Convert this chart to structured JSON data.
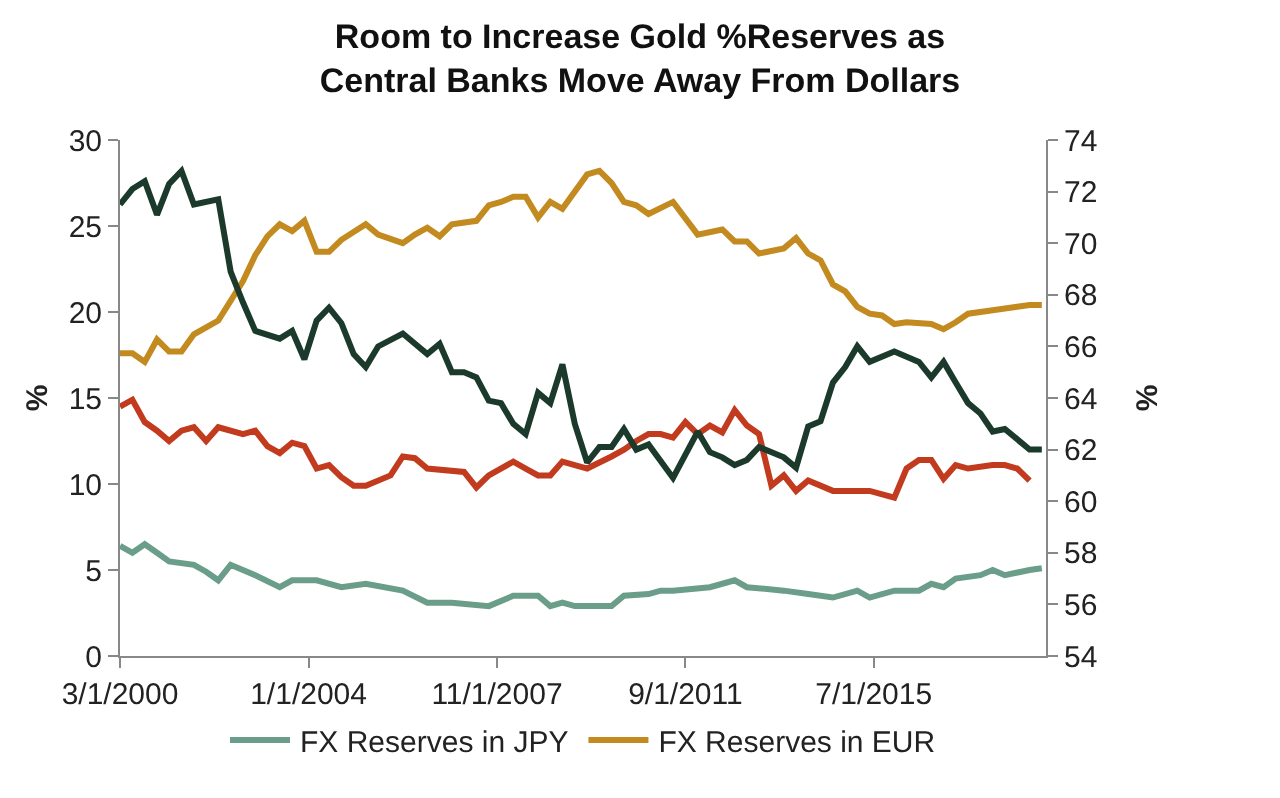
{
  "chart_data": {
    "type": "line",
    "title": "Room to Increase Gold %Reserves as\nCentral Banks Move Away From Dollars",
    "ylabel": "%",
    "y2label": "%",
    "xlim": [
      "2000-03-01",
      "2019-01-01"
    ],
    "xticks": [
      {
        "value": "2000-03-01",
        "label": "3/1/2000"
      },
      {
        "value": "2004-01-01",
        "label": "1/1/2004"
      },
      {
        "value": "2007-11-01",
        "label": "11/1/2007"
      },
      {
        "value": "2011-09-01",
        "label": "9/1/2011"
      },
      {
        "value": "2015-07-01",
        "label": "7/1/2015"
      }
    ],
    "ylim": [
      0,
      30
    ],
    "yticks": [
      0,
      5,
      10,
      15,
      20,
      25,
      30
    ],
    "y2lim": [
      54,
      74
    ],
    "y2ticks": [
      54,
      56,
      58,
      60,
      62,
      64,
      66,
      68,
      70,
      72,
      74
    ],
    "legend": "bottom",
    "series": [
      {
        "name": "FX Reserves in JPY",
        "color": "#6b9e8a",
        "x": [
          "2000-03",
          "2000-06",
          "2000-09",
          "2000-12",
          "2001-03",
          "2001-09",
          "2001-12",
          "2002-03",
          "2002-06",
          "2002-12",
          "2003-06",
          "2003-09",
          "2004-03",
          "2004-09",
          "2005-03",
          "2005-12",
          "2006-06",
          "2006-12",
          "2007-09",
          "2008-03",
          "2008-09",
          "2008-12",
          "2009-03",
          "2009-06",
          "2010-03",
          "2010-06",
          "2010-12",
          "2011-03",
          "2011-06",
          "2012-03",
          "2012-09",
          "2012-12",
          "2013-09",
          "2014-03",
          "2014-09",
          "2015-03",
          "2015-06",
          "2015-12",
          "2016-06",
          "2016-09",
          "2016-12",
          "2017-03",
          "2017-09",
          "2017-12",
          "2018-03",
          "2018-09",
          "2018-12"
        ],
        "values": [
          6.4,
          6.0,
          6.5,
          6.0,
          5.5,
          5.3,
          4.9,
          4.4,
          5.3,
          4.7,
          4.0,
          4.4,
          4.4,
          4.0,
          4.2,
          3.8,
          3.1,
          3.1,
          2.9,
          3.5,
          3.5,
          2.9,
          3.1,
          2.9,
          2.9,
          3.5,
          3.6,
          3.8,
          3.8,
          4.0,
          4.4,
          4.0,
          3.8,
          3.6,
          3.4,
          3.8,
          3.4,
          3.8,
          3.8,
          4.2,
          4.0,
          4.5,
          4.7,
          5.0,
          4.7,
          5.0,
          5.1
        ]
      },
      {
        "name": "FX Reserves in EUR",
        "color": "#c38a1f",
        "x": [
          "2000-03",
          "2000-06",
          "2000-09",
          "2000-12",
          "2001-03",
          "2001-06",
          "2001-09",
          "2002-03",
          "2002-09",
          "2002-12",
          "2003-03",
          "2003-06",
          "2003-09",
          "2003-12",
          "2004-03",
          "2004-06",
          "2004-09",
          "2005-03",
          "2005-06",
          "2005-12",
          "2006-03",
          "2006-06",
          "2006-09",
          "2006-12",
          "2007-06",
          "2007-09",
          "2007-12",
          "2008-03",
          "2008-06",
          "2008-09",
          "2008-12",
          "2009-03",
          "2009-09",
          "2009-12",
          "2010-03",
          "2010-06",
          "2010-09",
          "2010-12",
          "2011-06",
          "2011-12",
          "2012-06",
          "2012-09",
          "2012-12",
          "2013-03",
          "2013-09",
          "2013-12",
          "2014-03",
          "2014-06",
          "2014-09",
          "2014-12",
          "2015-03",
          "2015-06",
          "2015-09",
          "2015-12",
          "2016-03",
          "2016-09",
          "2016-12",
          "2017-03",
          "2017-06",
          "2017-12",
          "2018-06",
          "2018-09",
          "2018-12"
        ],
        "values": [
          17.6,
          17.6,
          17.1,
          18.4,
          17.7,
          17.7,
          18.7,
          19.5,
          21.8,
          23.3,
          24.4,
          25.1,
          24.7,
          25.3,
          23.5,
          23.5,
          24.2,
          25.1,
          24.5,
          24.0,
          24.5,
          24.9,
          24.4,
          25.1,
          25.3,
          26.2,
          26.4,
          26.7,
          26.7,
          25.5,
          26.4,
          26.0,
          28.0,
          28.2,
          27.5,
          26.4,
          26.2,
          25.7,
          26.4,
          24.5,
          24.8,
          24.1,
          24.1,
          23.4,
          23.7,
          24.3,
          23.4,
          23.0,
          21.6,
          21.2,
          20.3,
          19.9,
          19.8,
          19.3,
          19.4,
          19.3,
          19.0,
          19.4,
          19.9,
          20.1,
          20.3,
          20.4,
          20.4
        ]
      },
      {
        "color": "#c23b1f",
        "x": [
          "2000-03",
          "2000-06",
          "2000-09",
          "2000-12",
          "2001-03",
          "2001-06",
          "2001-09",
          "2001-12",
          "2002-03",
          "2002-09",
          "2002-12",
          "2003-03",
          "2003-06",
          "2003-09",
          "2003-12",
          "2004-03",
          "2004-06",
          "2004-09",
          "2004-12",
          "2005-03",
          "2005-09",
          "2005-12",
          "2006-03",
          "2006-06",
          "2007-03",
          "2007-06",
          "2007-09",
          "2008-03",
          "2008-06",
          "2008-09",
          "2008-12",
          "2009-03",
          "2009-06",
          "2009-09",
          "2010-03",
          "2010-06",
          "2010-09",
          "2010-12",
          "2011-03",
          "2011-06",
          "2011-09",
          "2011-12",
          "2012-03",
          "2012-06",
          "2012-09",
          "2012-12",
          "2013-03",
          "2013-06",
          "2013-09",
          "2013-12",
          "2014-03",
          "2014-09",
          "2015-06",
          "2015-12",
          "2016-03",
          "2016-06",
          "2016-09",
          "2016-12",
          "2017-03",
          "2017-06",
          "2017-12",
          "2018-03",
          "2018-06",
          "2018-09"
        ],
        "values": [
          14.5,
          14.9,
          13.6,
          13.1,
          12.5,
          13.1,
          13.3,
          12.5,
          13.3,
          12.9,
          13.1,
          12.2,
          11.8,
          12.4,
          12.2,
          10.9,
          11.1,
          10.4,
          9.9,
          9.9,
          10.5,
          11.6,
          11.5,
          10.9,
          10.7,
          9.8,
          10.5,
          11.3,
          10.9,
          10.5,
          10.5,
          11.3,
          11.1,
          10.9,
          11.6,
          12.0,
          12.5,
          12.9,
          12.9,
          12.7,
          13.6,
          12.9,
          13.4,
          13.0,
          14.3,
          13.4,
          12.9,
          9.9,
          10.5,
          9.6,
          10.2,
          9.6,
          9.6,
          9.2,
          10.9,
          11.4,
          11.4,
          10.3,
          11.1,
          10.9,
          11.1,
          11.1,
          10.9,
          10.2
        ]
      },
      {
        "color": "#1c3a2c",
        "axis": "y2",
        "x": [
          "2000-03",
          "2000-06",
          "2000-09",
          "2000-12",
          "2001-03",
          "2001-06",
          "2001-09",
          "2002-03",
          "2002-06",
          "2002-09",
          "2002-12",
          "2003-06",
          "2003-09",
          "2003-12",
          "2004-03",
          "2004-06",
          "2004-09",
          "2004-12",
          "2005-03",
          "2005-06",
          "2005-12",
          "2006-06",
          "2006-09",
          "2006-12",
          "2007-03",
          "2007-06",
          "2007-09",
          "2007-12",
          "2008-03",
          "2008-06",
          "2008-09",
          "2008-12",
          "2009-03",
          "2009-06",
          "2009-09",
          "2009-12",
          "2010-03",
          "2010-06",
          "2010-09",
          "2010-12",
          "2011-06",
          "2011-12",
          "2012-03",
          "2012-06",
          "2012-09",
          "2012-12",
          "2013-03",
          "2013-09",
          "2013-12",
          "2014-03",
          "2014-06",
          "2014-09",
          "2014-12",
          "2015-03",
          "2015-06",
          "2015-12",
          "2016-06",
          "2016-09",
          "2016-12",
          "2017-03",
          "2017-06",
          "2017-09",
          "2017-12",
          "2018-03",
          "2018-09",
          "2018-12"
        ],
        "values": [
          71.5,
          72.1,
          72.4,
          71.1,
          72.3,
          72.8,
          71.5,
          71.7,
          68.9,
          67.7,
          66.6,
          66.3,
          66.6,
          65.5,
          67.0,
          67.5,
          66.9,
          65.7,
          65.2,
          66.0,
          66.5,
          65.7,
          66.1,
          65.0,
          65.0,
          64.8,
          63.9,
          63.8,
          63.0,
          62.6,
          64.2,
          63.8,
          65.3,
          63.0,
          61.5,
          62.1,
          62.1,
          62.8,
          62.0,
          62.2,
          60.9,
          62.7,
          61.9,
          61.7,
          61.4,
          61.6,
          62.1,
          61.7,
          61.3,
          62.9,
          63.1,
          64.6,
          65.2,
          66.0,
          65.4,
          65.8,
          65.4,
          64.8,
          65.4,
          64.6,
          63.8,
          63.4,
          62.7,
          62.8,
          62.0,
          62.0
        ]
      }
    ]
  }
}
